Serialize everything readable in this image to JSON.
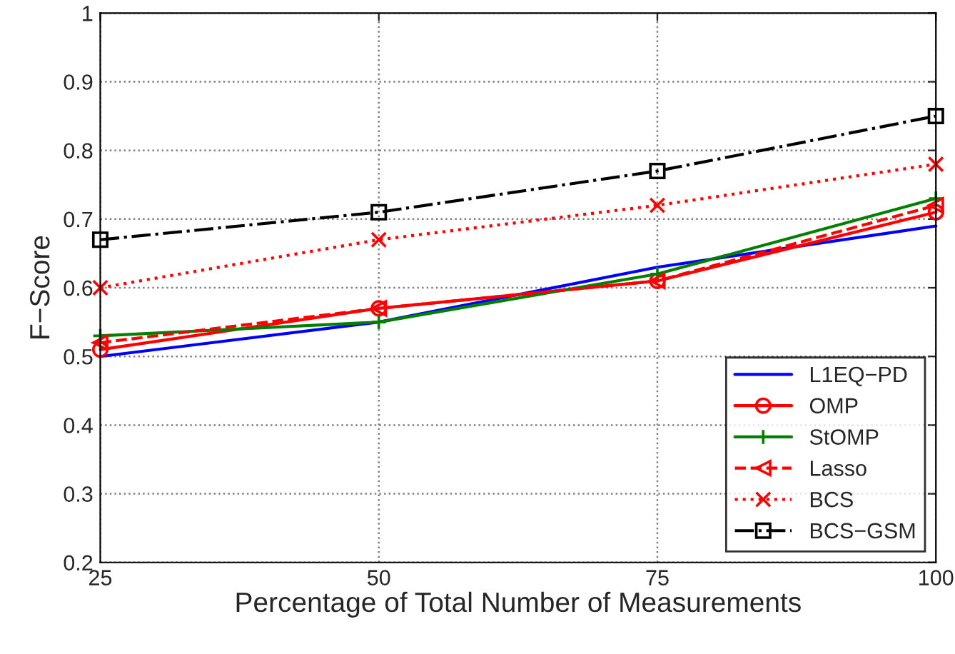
{
  "chart_data": {
    "type": "line",
    "xlabel": "Percentage of Total Number of Measurements",
    "ylabel": "F−Score",
    "x": [
      25,
      50,
      75,
      100
    ],
    "xlim": [
      25,
      100
    ],
    "xticks": [
      25,
      50,
      75,
      100
    ],
    "ylim": [
      0.2,
      1
    ],
    "yticks": [
      0.2,
      0.3,
      0.4,
      0.5,
      0.6,
      0.7,
      0.8,
      0.9,
      1
    ],
    "grid": true,
    "legend": "bottom right",
    "series": [
      {
        "name": "L1EQ−PD",
        "color": "#0000ff",
        "values": [
          0.5,
          0.55,
          0.63,
          0.69
        ],
        "marker": "none",
        "line_style": "solid"
      },
      {
        "name": "OMP",
        "color": "#ff0000",
        "values": [
          0.51,
          0.57,
          0.61,
          0.71
        ],
        "marker": "circle",
        "line_style": "solid"
      },
      {
        "name": "StOMP",
        "color": "#008000",
        "values": [
          0.53,
          0.55,
          0.62,
          0.73
        ],
        "marker": "plus",
        "line_style": "solid"
      },
      {
        "name": "Lasso",
        "color": "#ff0000",
        "values": [
          0.52,
          0.57,
          0.61,
          0.72
        ],
        "marker": "triangle",
        "line_style": "dashed"
      },
      {
        "name": "BCS",
        "color": "#ff0000",
        "values": [
          0.6,
          0.67,
          0.72,
          0.78
        ],
        "marker": "cross",
        "line_style": "dotted"
      },
      {
        "name": "BCS−GSM",
        "color": "#000000",
        "values": [
          0.67,
          0.71,
          0.77,
          0.85
        ],
        "marker": "square",
        "line_style": "dashdot"
      }
    ]
  }
}
